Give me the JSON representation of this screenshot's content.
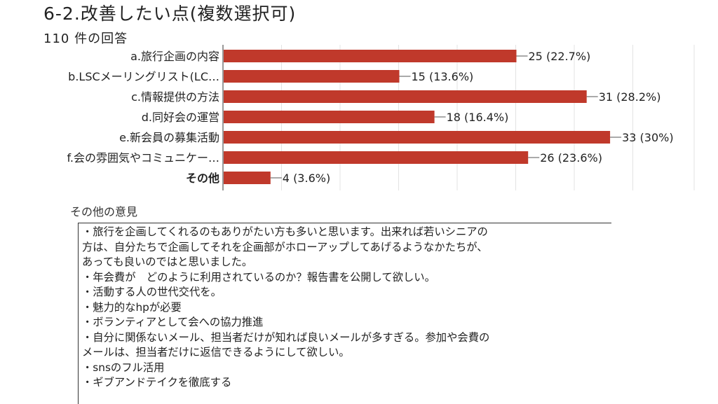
{
  "header": {
    "title": "6-2.改善したい点(複数選択可)",
    "response_count": "110 件の回答"
  },
  "chart_data": {
    "type": "bar",
    "orientation": "horizontal",
    "categories": [
      "a.旅行企画の内容",
      "b.LSCメーリングリスト(LC…",
      "c.情報提供の方法",
      "d.同好会の運営",
      "e.新会員の募集活動",
      "f.会の雰囲気やコミュニケー…",
      "その他"
    ],
    "values": [
      25,
      15,
      31,
      18,
      33,
      26,
      4
    ],
    "value_labels": [
      "25 (22.7%)",
      "15 (13.6%)",
      "31 (28.2%)",
      "18 (16.4%)",
      "33 (30%)",
      "26 (23.6%)",
      "4 (3.6%)"
    ],
    "bold_category_index": 6,
    "xlim": [
      0,
      37
    ],
    "grid": true,
    "bar_color": "#c0392b"
  },
  "notes": {
    "heading": "その他の意見",
    "lines": [
      "・旅行を企画してくれるのもありがたい方も多いと思います。出来れば若いシニアの",
      "方は、自分たちで企画してそれを企画部がホローアップしてあげるようなかたちが、",
      "あっても良いのではと思いました。",
      "・年会費が　どのように利用されているのか？報告書を公開して欲しい。",
      "・活動する人の世代交代を。",
      "・魅力的なhpが必要",
      "・ボランティアとして会への協力推進",
      "・自分に関係ないメール、担当者だけが知れば良いメールが多すぎる。参加や会費の",
      "メールは、担当者だけに返信できるようにして欲しい。",
      "・snsのフル活用",
      "・ギブアンドテイクを徹底する"
    ]
  }
}
